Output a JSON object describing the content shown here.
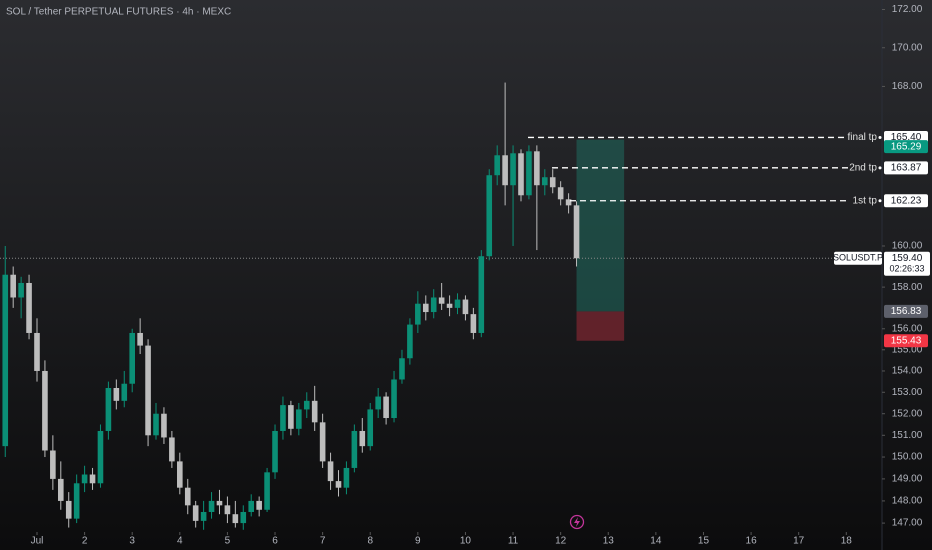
{
  "chart_data": {
    "type": "candlestick",
    "title": "SOL / Tether PERPETUAL FUTURES · 4h · MEXC",
    "log_scale": true,
    "up_color": "#0b8f76",
    "down_color": "#bdbdbd",
    "xlim": [
      0.223,
      18.75
    ],
    "ylim": [
      146.6,
      172.5
    ],
    "xticks": [
      {
        "value": 1,
        "label": "Jul"
      },
      2,
      3,
      4,
      5,
      6,
      7,
      8,
      9,
      10,
      11,
      12,
      13,
      14,
      15,
      16,
      17,
      18
    ],
    "yticks": [
      {
        "value": 172,
        "label": "172.00"
      },
      {
        "value": 170,
        "label": "170.00"
      },
      {
        "value": 168,
        "label": "168.00"
      },
      {
        "value": 160,
        "label": "160.00"
      },
      {
        "value": 158,
        "label": "158.00"
      },
      {
        "value": 156,
        "label": "156.00"
      },
      {
        "value": 155,
        "label": "155.00"
      },
      {
        "value": 154,
        "label": "154.00"
      },
      {
        "value": 153,
        "label": "153.00"
      },
      {
        "value": 152,
        "label": "152.00"
      },
      {
        "value": 151,
        "label": "151.00"
      },
      {
        "value": 150,
        "label": "150.00"
      },
      {
        "value": 149,
        "label": "149.00"
      },
      {
        "value": 148,
        "label": "148.00"
      },
      {
        "value": 147,
        "label": "147.00"
      }
    ],
    "x": [
      0.3333,
      0.5,
      0.6667,
      0.8333,
      1.0,
      1.1667,
      1.3333,
      1.5,
      1.6667,
      1.8333,
      2.0,
      2.1667,
      2.3333,
      2.5,
      2.6667,
      2.8333,
      3.0,
      3.1667,
      3.3333,
      3.5,
      3.6667,
      3.8333,
      4.0,
      4.1667,
      4.3333,
      4.5,
      4.6667,
      4.8333,
      5.0,
      5.1667,
      5.3333,
      5.5,
      5.6667,
      5.8333,
      6.0,
      6.1667,
      6.3333,
      6.5,
      6.6667,
      6.8333,
      7.0,
      7.1667,
      7.3333,
      7.5,
      7.6667,
      7.8333,
      8.0,
      8.1667,
      8.3333,
      8.5,
      8.6667,
      8.8333,
      9.0,
      9.1667,
      9.3333,
      9.5,
      9.6667,
      9.8333,
      10.0,
      10.1667,
      10.3333,
      10.5,
      10.6667,
      10.8333,
      11.0,
      11.1667,
      11.3333,
      11.5,
      11.6667,
      11.8333,
      12.0,
      12.1667,
      12.3333
    ],
    "open": [
      150.5,
      158.6,
      157.5,
      158.2,
      155.8,
      154.0,
      150.3,
      149.0,
      148.0,
      147.2,
      148.8,
      149.2,
      148.8,
      151.2,
      153.2,
      152.6,
      153.4,
      155.8,
      155.2,
      151.0,
      152.0,
      150.9,
      149.8,
      148.6,
      147.8,
      147.1,
      147.5,
      148.0,
      147.8,
      147.4,
      147.0,
      147.5,
      148.0,
      147.6,
      149.3,
      151.2,
      152.4,
      151.3,
      152.2,
      152.6,
      151.6,
      149.8,
      148.9,
      148.6,
      149.5,
      151.2,
      150.5,
      152.2,
      152.8,
      151.8,
      153.6,
      154.6,
      156.2,
      157.2,
      156.8,
      157.5,
      157.2,
      157.0,
      157.4,
      156.7,
      155.8,
      159.5,
      163.5,
      164.5,
      163.0,
      164.6,
      162.5,
      164.7,
      163.0,
      163.4,
      162.9,
      162.3,
      162.0
    ],
    "high": [
      160.0,
      159.0,
      158.5,
      158.6,
      156.5,
      154.5,
      151.0,
      149.8,
      148.4,
      149.2,
      149.6,
      149.5,
      151.5,
      153.5,
      153.6,
      154.0,
      156.0,
      156.5,
      155.5,
      152.5,
      152.3,
      151.2,
      150.2,
      149.0,
      148.0,
      148.0,
      148.4,
      148.5,
      148.2,
      148.0,
      147.8,
      148.3,
      148.2,
      149.5,
      151.5,
      152.8,
      152.6,
      152.5,
      153.0,
      153.3,
      152.0,
      150.2,
      149.4,
      149.8,
      151.5,
      151.8,
      152.5,
      153.2,
      153.0,
      154.0,
      155.0,
      156.5,
      157.8,
      157.6,
      157.9,
      158.2,
      157.6,
      157.7,
      157.6,
      157.0,
      159.8,
      163.8,
      165.0,
      168.2,
      165.0,
      164.8,
      165.0,
      165.0,
      163.8,
      163.8,
      163.2,
      162.6,
      162.2
    ],
    "low": [
      150.0,
      157.0,
      156.5,
      155.5,
      153.5,
      150.0,
      148.5,
      147.6,
      146.8,
      147.0,
      148.4,
      148.5,
      148.6,
      150.8,
      152.2,
      152.3,
      153.0,
      154.8,
      150.5,
      150.8,
      150.6,
      149.5,
      148.3,
      147.4,
      146.8,
      146.7,
      147.2,
      147.4,
      147.0,
      146.8,
      146.7,
      147.3,
      147.3,
      147.5,
      149.0,
      150.8,
      151.0,
      151.0,
      151.8,
      151.2,
      149.5,
      148.5,
      148.2,
      148.3,
      149.3,
      150.2,
      150.3,
      151.8,
      151.5,
      151.6,
      153.4,
      154.3,
      155.8,
      156.4,
      156.5,
      156.9,
      156.6,
      156.7,
      156.4,
      155.5,
      155.6,
      159.3,
      163.0,
      162.0,
      160.0,
      162.2,
      162.3,
      159.8,
      162.5,
      162.6,
      162.0,
      161.6,
      159.0
    ],
    "close": [
      158.6,
      157.5,
      158.2,
      155.8,
      154.0,
      150.3,
      149.0,
      148.0,
      147.2,
      148.8,
      149.2,
      148.8,
      151.2,
      153.2,
      152.6,
      153.4,
      155.8,
      155.2,
      151.0,
      152.0,
      150.9,
      149.8,
      148.6,
      147.8,
      147.1,
      147.5,
      148.0,
      147.8,
      147.4,
      147.0,
      147.5,
      148.0,
      147.6,
      149.3,
      151.2,
      152.4,
      151.3,
      152.2,
      152.6,
      151.6,
      149.8,
      148.9,
      148.6,
      149.5,
      151.2,
      150.5,
      152.2,
      152.8,
      151.8,
      153.6,
      154.6,
      156.2,
      157.2,
      156.8,
      157.5,
      157.2,
      157.0,
      157.4,
      156.7,
      155.8,
      159.5,
      163.5,
      164.5,
      163.0,
      164.6,
      162.5,
      164.7,
      163.0,
      163.4,
      162.9,
      162.3,
      162.0,
      159.4
    ],
    "price_lines": [
      {
        "name": "final tp",
        "value": 165.4,
        "label": "165.40"
      },
      {
        "name": "2nd tp",
        "value": 163.87,
        "label": "163.87"
      },
      {
        "name": "1st tp",
        "value": 162.23,
        "label": "162.23"
      }
    ],
    "last_price": {
      "name": "SOLUSDT.P",
      "value": 159.4,
      "label": "159.40",
      "countdown": "02:26:33"
    },
    "position": {
      "span": [
        12.3333,
        13.3333
      ],
      "target": {
        "value": 165.29,
        "label": "165.29"
      },
      "entry": {
        "value": 156.83,
        "label": "156.83"
      },
      "stop": {
        "value": 155.43,
        "label": "155.43"
      }
    }
  }
}
